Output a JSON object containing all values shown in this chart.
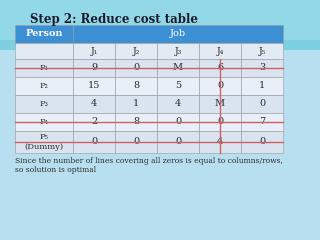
{
  "title": "Step 2: Reduce cost table",
  "header_person": "Person",
  "header_job": "Job",
  "col_headers": [
    "J₁",
    "J₂",
    "J₃",
    "J₄",
    "J₅"
  ],
  "row_headers": [
    "P₁",
    "P₂",
    "P₃",
    "P₄",
    "P₅\n(Dummy)"
  ],
  "table_data": [
    [
      "9",
      "0",
      "M",
      "6",
      "3"
    ],
    [
      "15",
      "8",
      "5",
      "0",
      "1"
    ],
    [
      "4",
      "1",
      "4",
      "M",
      "0"
    ],
    [
      "2",
      "8",
      "0",
      "0",
      "7"
    ],
    [
      "0",
      "0",
      "0",
      "4",
      "0"
    ]
  ],
  "footer_text": "Since the number of lines covering all zeros is equal to columns/rows,\nso solution is optimal",
  "header_bg": "#3d8fd4",
  "header_text_color": "#ffffff",
  "row_bg_even": "#d9e4f0",
  "row_bg_odd": "#e8eff8",
  "col_header_bg": "#e2eaf4",
  "table_text_color": "#2c2c2c",
  "title_color": "#1a1a2e",
  "footer_color": "#2c2c2c",
  "hline_rows": [
    0,
    3,
    4
  ],
  "vline_col": 4,
  "line_color": "#d06060",
  "bg_top_color": "#7dd0e0",
  "bg_bottom_color": "#b8dff0"
}
